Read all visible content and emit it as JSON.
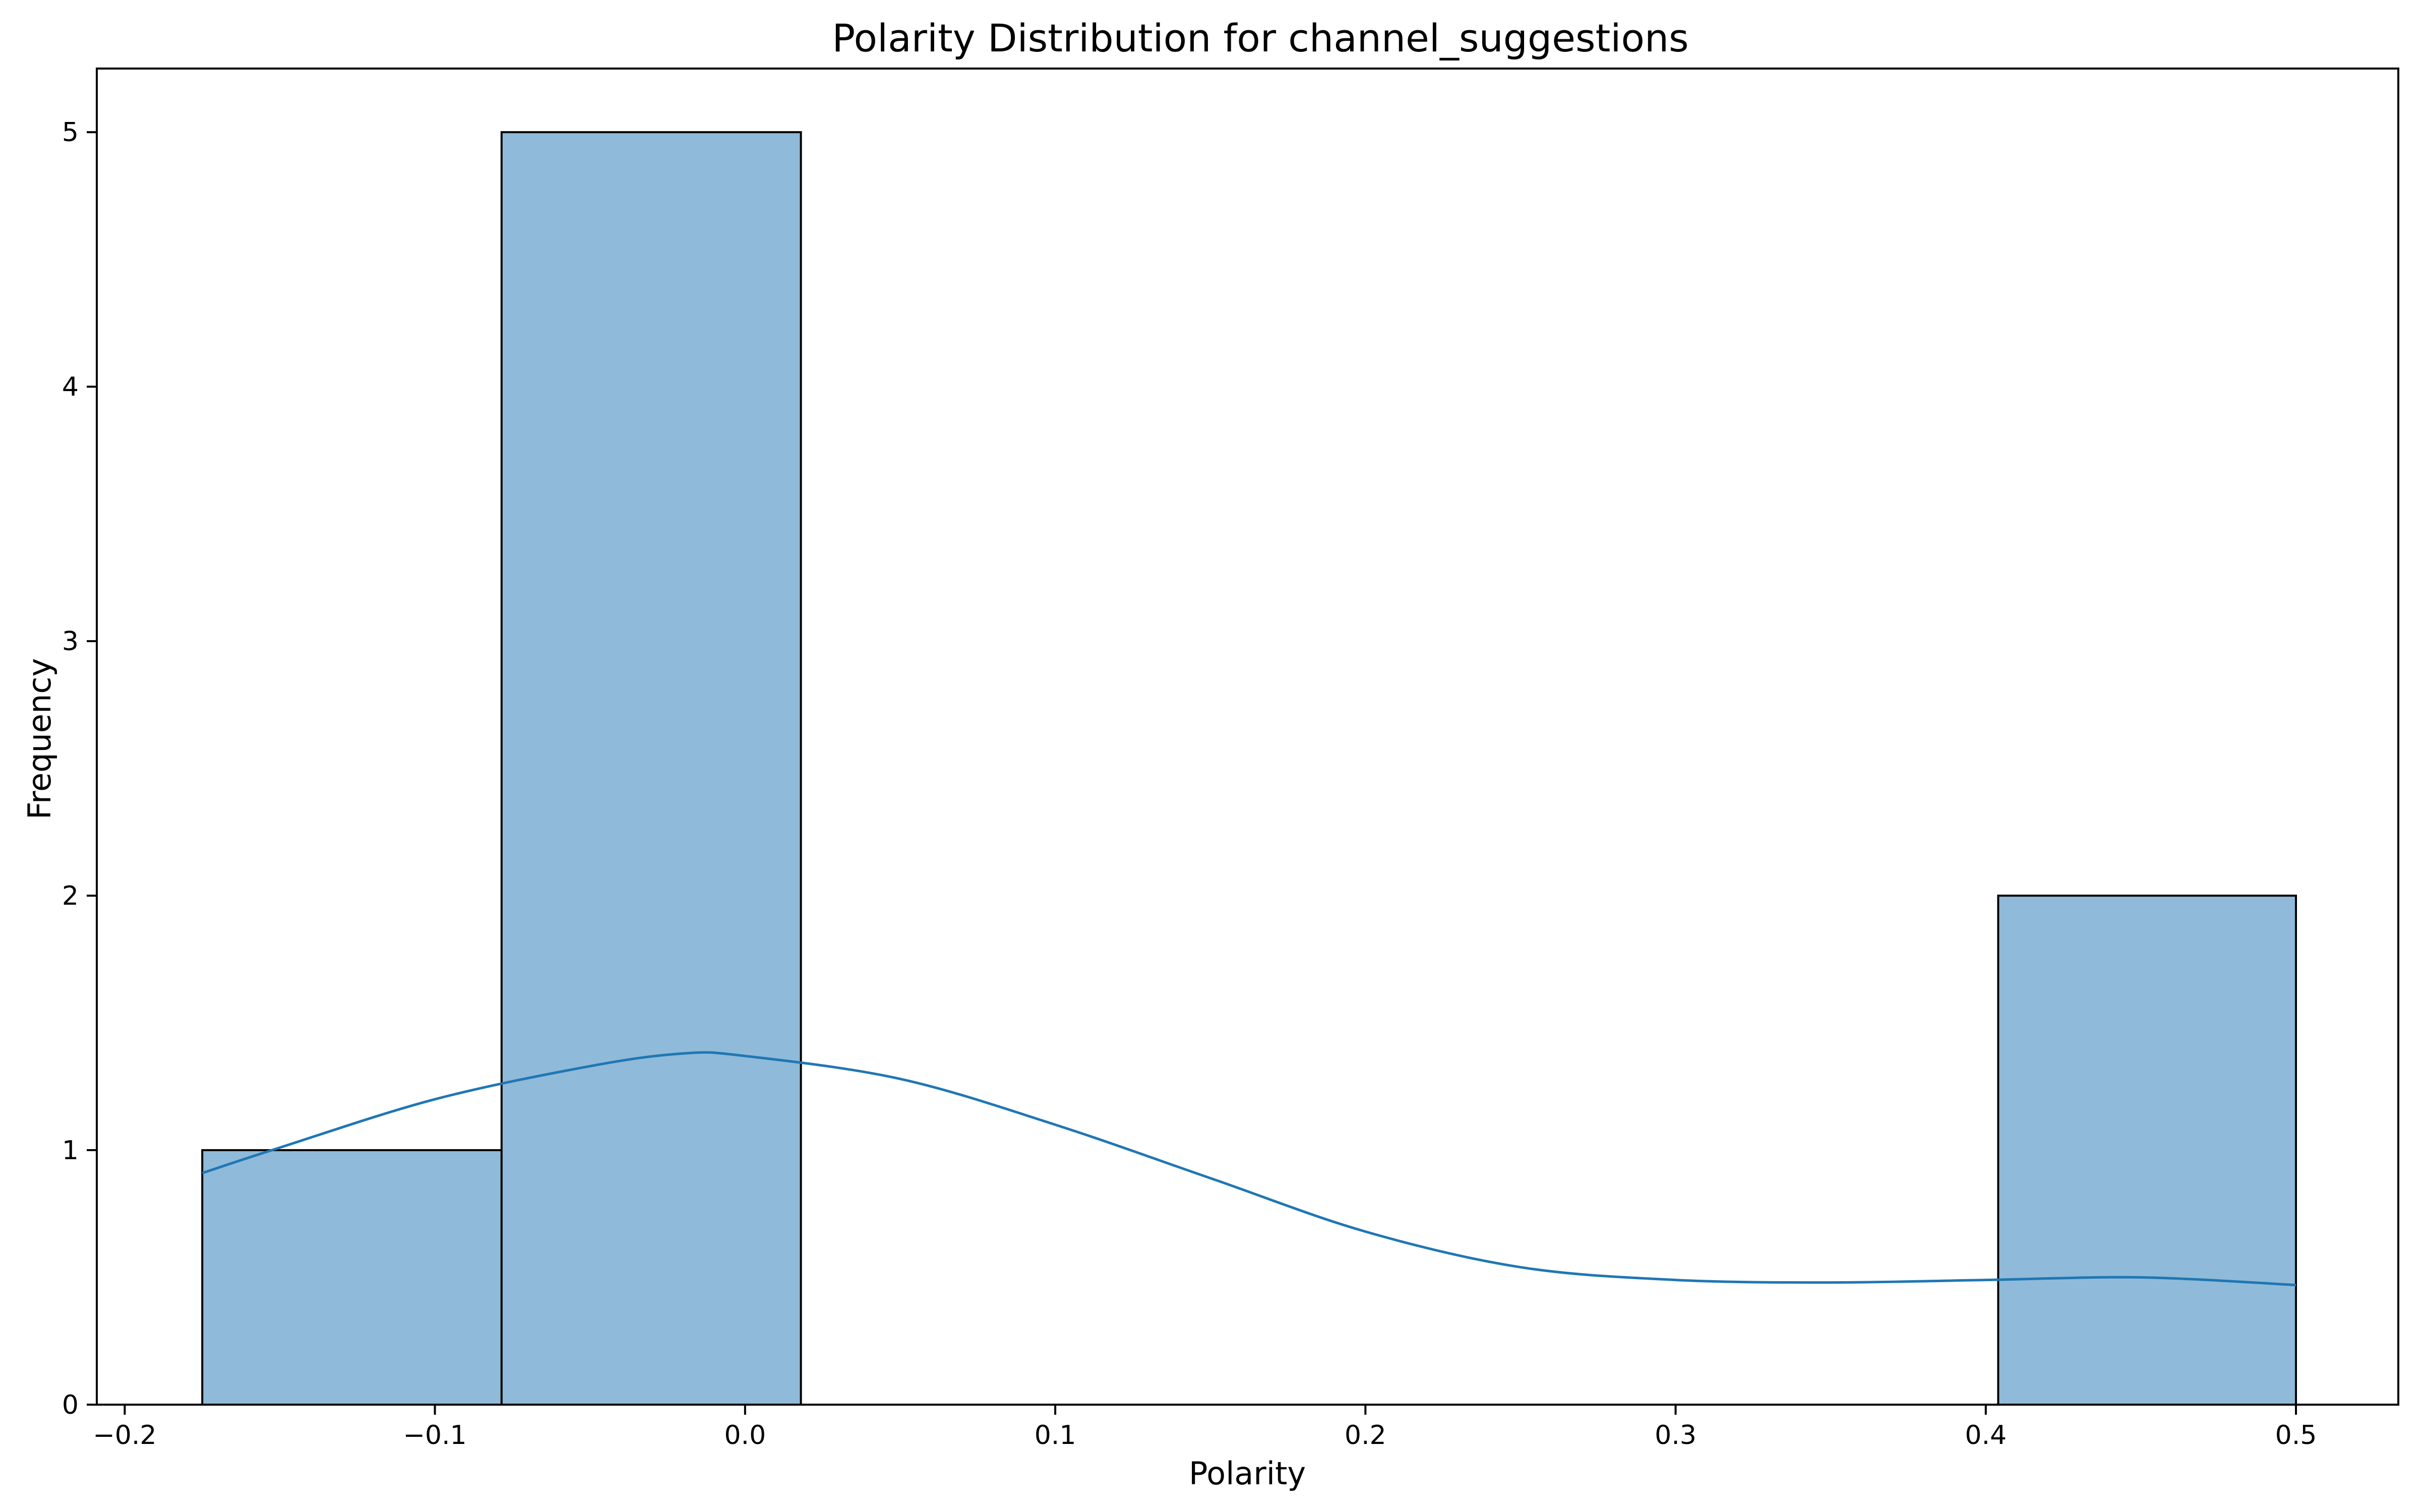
{
  "chart_data": {
    "type": "bar",
    "title": "Polarity Distribution for channel_suggestions",
    "xlabel": "Polarity",
    "ylabel": "Frequency",
    "xlim": [
      -0.209,
      0.533
    ],
    "ylim": [
      0,
      5.25
    ],
    "xticks": [
      -0.2,
      -0.1,
      0.0,
      0.1,
      0.2,
      0.3,
      0.4,
      0.5
    ],
    "xtick_labels": [
      "−0.2",
      "−0.1",
      "0.0",
      "0.1",
      "0.2",
      "0.3",
      "0.4",
      "0.5"
    ],
    "yticks": [
      0,
      1,
      2,
      3,
      4,
      5
    ],
    "ytick_labels": [
      "0",
      "1",
      "2",
      "3",
      "4",
      "5"
    ],
    "bins": [
      {
        "x0": -0.175,
        "x1": -0.0785,
        "value": 1
      },
      {
        "x0": -0.0785,
        "x1": 0.018,
        "value": 5
      },
      {
        "x0": 0.018,
        "x1": 0.1145,
        "value": 0
      },
      {
        "x0": 0.1145,
        "x1": 0.211,
        "value": 0
      },
      {
        "x0": 0.211,
        "x1": 0.3075,
        "value": 0
      },
      {
        "x0": 0.3075,
        "x1": 0.404,
        "value": 0
      },
      {
        "x0": 0.404,
        "x1": 0.5,
        "value": 2
      }
    ],
    "kde": {
      "x": [
        -0.175,
        -0.15,
        -0.1,
        -0.05,
        -0.02,
        0.0,
        0.05,
        0.1,
        0.15,
        0.2,
        0.25,
        0.3,
        0.35,
        0.4,
        0.45,
        0.5
      ],
      "y": [
        0.91,
        1.01,
        1.2,
        1.33,
        1.38,
        1.37,
        1.28,
        1.1,
        0.89,
        0.68,
        0.54,
        0.49,
        0.48,
        0.49,
        0.5,
        0.47
      ]
    },
    "grid": false,
    "colors": {
      "bar_fill": "#8fbad9",
      "bar_edge": "#000000",
      "kde_line": "#1f77b4"
    }
  }
}
